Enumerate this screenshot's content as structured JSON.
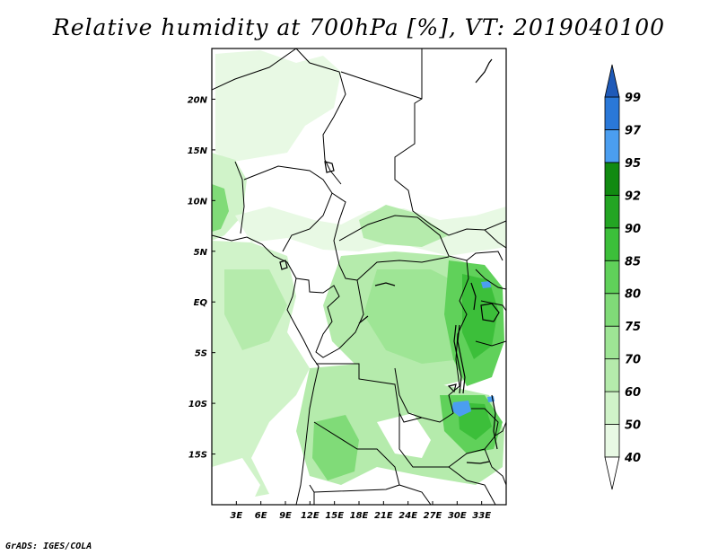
{
  "title": "Relative humidity at 700hPa [%], VT: 2019040100",
  "credit": "GrADS: IGES/COLA",
  "map": {
    "lon_range": [
      0,
      36
    ],
    "lat_range": [
      -20,
      25
    ],
    "x_ticks": [
      "3E",
      "6E",
      "9E",
      "12E",
      "15E",
      "18E",
      "21E",
      "24E",
      "27E",
      "30E",
      "33E"
    ],
    "y_ticks": [
      "20N",
      "15N",
      "10N",
      "5N",
      "EQ",
      "5S",
      "10S",
      "15S"
    ]
  },
  "colorbar": {
    "levels": [
      "40",
      "50",
      "60",
      "70",
      "75",
      "80",
      "85",
      "90",
      "92",
      "95",
      "97",
      "99"
    ],
    "colors": [
      "#ffffff",
      "#e8f9e4",
      "#d0f3c9",
      "#b5ebac",
      "#9ee595",
      "#80db78",
      "#60d15a",
      "#3cbf3a",
      "#23a523",
      "#118a11",
      "#4b9ef0",
      "#2a78d8",
      "#1f5ab8"
    ]
  }
}
